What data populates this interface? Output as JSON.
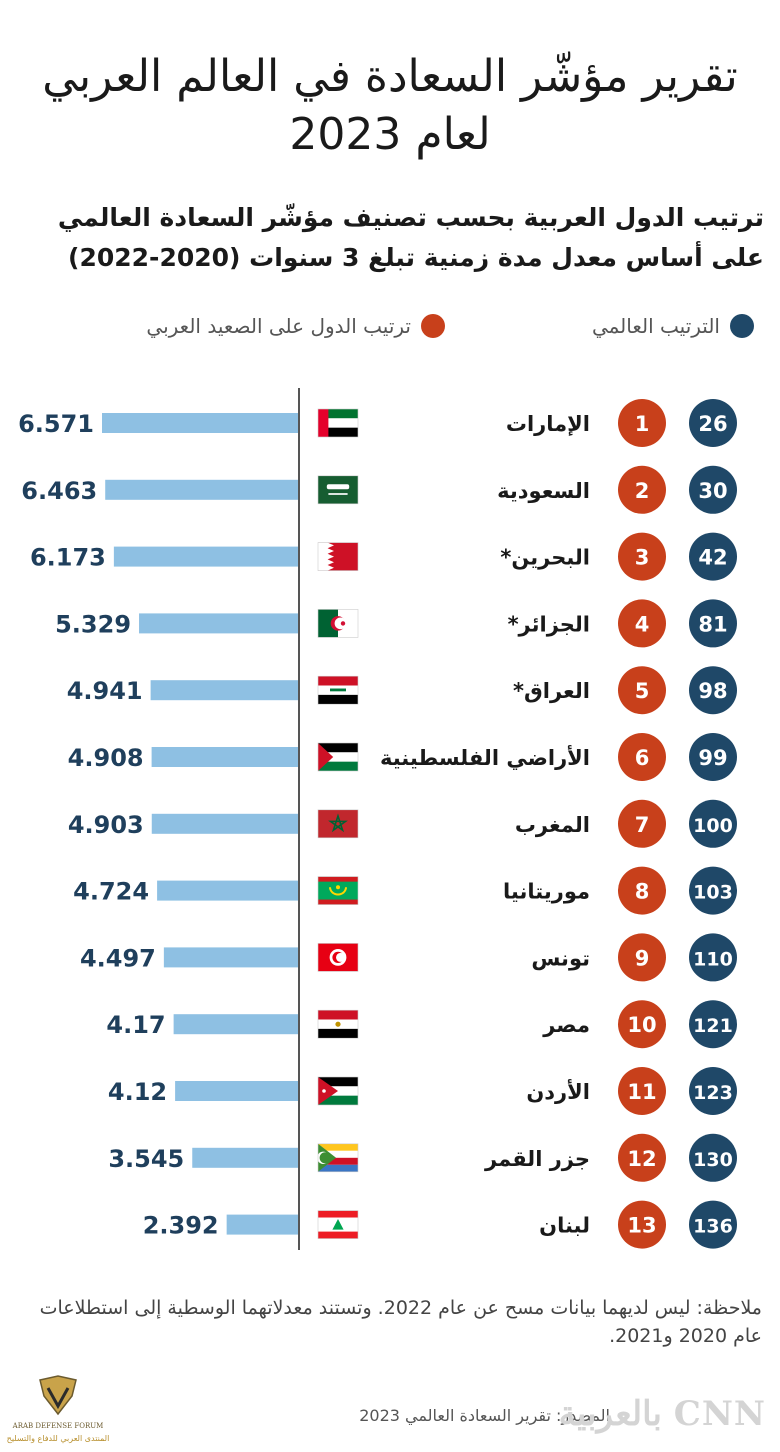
{
  "title": "تقرير مؤشّر السعادة في العالم العربي لعام 2023",
  "subtitle": "ترتيب الدول العربية بحسب تصنيف مؤشّر السعادة العالمي على أساس معدل مدة زمنية تبلغ 3 سنوات (2020-2022)",
  "legend": {
    "world_rank": "الترتيب العالمي",
    "arab_rank": "ترتيب الدول على الصعيد العربي"
  },
  "colors": {
    "world_rank": "#1f4868",
    "arab_rank": "#c8401b",
    "bar": "#8ec0e3"
  },
  "chart_data": {
    "type": "bar",
    "orientation": "horizontal",
    "xlim": [
      0,
      6.571
    ],
    "categories": [
      "الإمارات",
      "السعودية",
      "البحرين*",
      "الجزائر*",
      "العراق*",
      "الأراضي الفلسطينية",
      "المغرب",
      "موريتانيا",
      "تونس",
      "مصر",
      "الأردن",
      "جزر القمر",
      "لبنان"
    ],
    "values": [
      6.571,
      6.463,
      6.173,
      5.329,
      4.941,
      4.908,
      4.903,
      4.724,
      4.497,
      4.17,
      4.12,
      3.545,
      2.392
    ],
    "value_labels": [
      "6.571",
      "6.463",
      "6.173",
      "5.329",
      "4.941",
      "4.908",
      "4.903",
      "4.724",
      "4.497",
      "4.17",
      "4.12",
      "3.545",
      "2.392"
    ],
    "arab_rank": [
      "1",
      "2",
      "3",
      "4",
      "5",
      "6",
      "7",
      "8",
      "9",
      "10",
      "11",
      "12",
      "13"
    ],
    "world_rank": [
      "26",
      "30",
      "42",
      "81",
      "98",
      "99",
      "100",
      "103",
      "110",
      "121",
      "123",
      "130",
      "136"
    ],
    "flags": [
      "uae",
      "saudi",
      "bahrain",
      "algeria",
      "iraq",
      "palestine",
      "morocco",
      "mauritania",
      "tunisia",
      "egypt",
      "jordan",
      "comoros",
      "lebanon"
    ]
  },
  "note": "ملاحظة: ليس لديهما بيانات مسح عن عام 2022. وتستند معدلاتهما الوسطية إلى استطلاعات عام 2020 و2021.",
  "source": "المصدر: تقرير السعادة العالمي 2023",
  "brand": {
    "cnn": "بالعربية CNN",
    "forum_name": "ARAB DEFENSE FORUM",
    "forum_sub": "المنتدى العربي للدفاع والتسليح"
  }
}
